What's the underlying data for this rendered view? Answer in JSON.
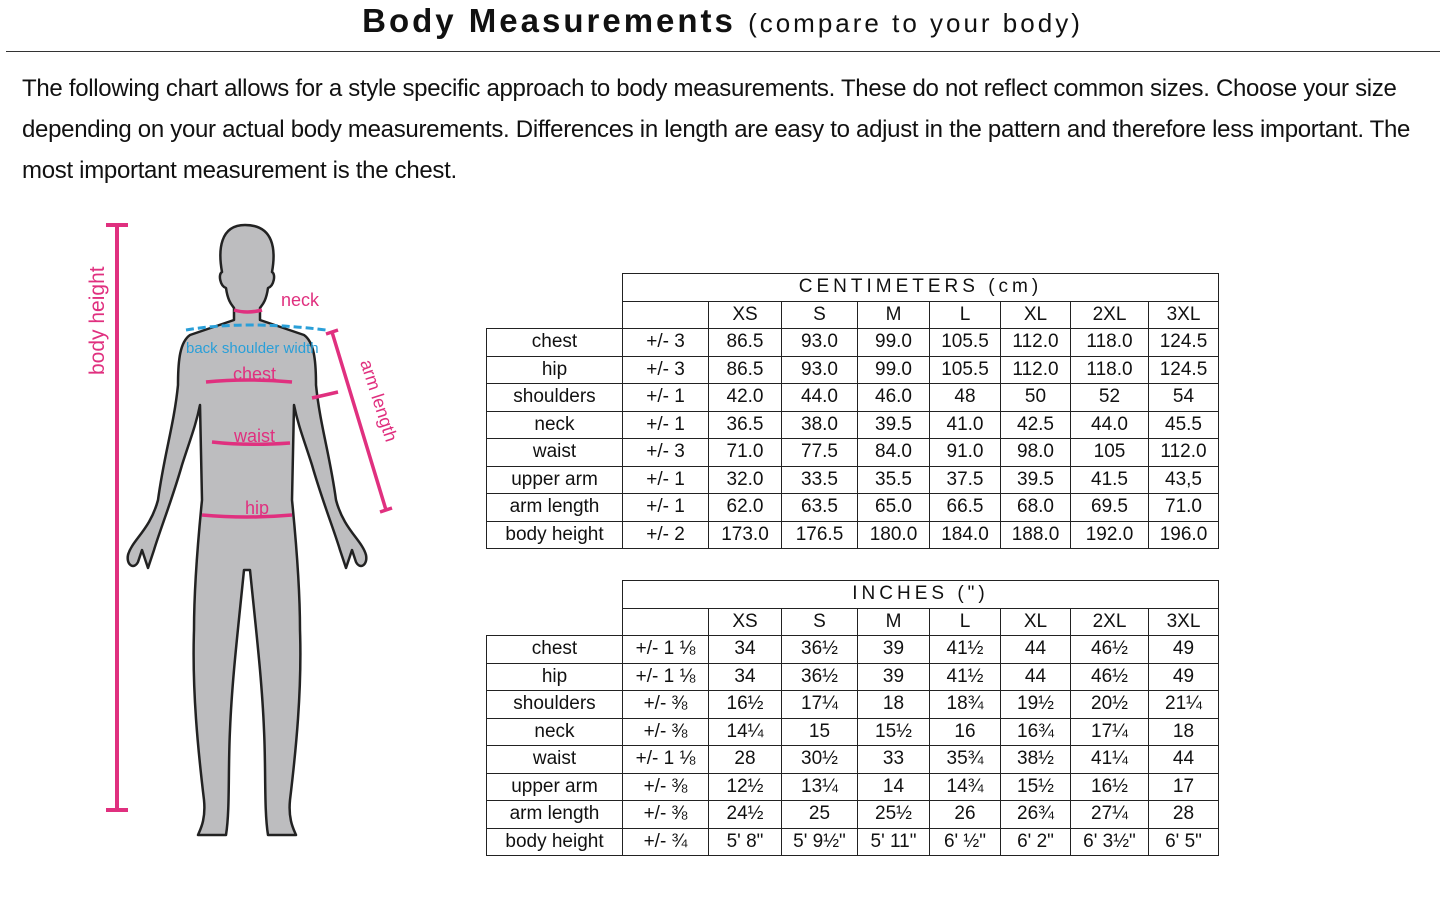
{
  "title": {
    "main": "Body Measurements",
    "sub": "(compare to your body)"
  },
  "intro": "The following chart allows for a style specific approach to body measurements. These do not reflect common sizes. Choose your size depending on your actual body measurements. Differences in length are easy to adjust in the pattern and therefore less important. The most important measurement is the chest.",
  "figure": {
    "labels": {
      "body_height": "body height",
      "neck": "neck",
      "back_shoulder_width": "back shoulder width",
      "chest": "chest",
      "waist": "waist",
      "hip": "hip",
      "arm_length": "arm length"
    },
    "colors": {
      "measure": "#e0307f",
      "shoulder": "#2a9fd8",
      "body": "#bdbdbf"
    }
  },
  "sizes": [
    "XS",
    "S",
    "M",
    "L",
    "XL",
    "2XL",
    "3XL"
  ],
  "centimeters": {
    "heading": "CENTIMETERS (cm)",
    "rows": [
      {
        "label": "chest",
        "tol": "+/- 3",
        "values": [
          "86.5",
          "93.0",
          "99.0",
          "105.5",
          "112.0",
          "118.0",
          "124.5"
        ]
      },
      {
        "label": "hip",
        "tol": "+/- 3",
        "values": [
          "86.5",
          "93.0",
          "99.0",
          "105.5",
          "112.0",
          "118.0",
          "124.5"
        ]
      },
      {
        "label": "shoulders",
        "tol": "+/- 1",
        "values": [
          "42.0",
          "44.0",
          "46.0",
          "48",
          "50",
          "52",
          "54"
        ]
      },
      {
        "label": "neck",
        "tol": "+/- 1",
        "values": [
          "36.5",
          "38.0",
          "39.5",
          "41.0",
          "42.5",
          "44.0",
          "45.5"
        ]
      },
      {
        "label": "waist",
        "tol": "+/- 3",
        "values": [
          "71.0",
          "77.5",
          "84.0",
          "91.0",
          "98.0",
          "105",
          "112.0"
        ]
      },
      {
        "label": "upper arm",
        "tol": "+/- 1",
        "values": [
          "32.0",
          "33.5",
          "35.5",
          "37.5",
          "39.5",
          "41.5",
          "43,5"
        ]
      },
      {
        "label": "arm length",
        "tol": "+/- 1",
        "values": [
          "62.0",
          "63.5",
          "65.0",
          "66.5",
          "68.0",
          "69.5",
          "71.0"
        ]
      },
      {
        "label": "body height",
        "tol": "+/- 2",
        "values": [
          "173.0",
          "176.5",
          "180.0",
          "184.0",
          "188.0",
          "192.0",
          "196.0"
        ]
      }
    ]
  },
  "inches": {
    "heading": "INCHES (\")",
    "rows": [
      {
        "label": "chest",
        "tol": "+/- 1 ⅛",
        "values": [
          "34",
          "36½",
          "39",
          "41½",
          "44",
          "46½",
          "49"
        ]
      },
      {
        "label": "hip",
        "tol": "+/- 1 ⅛",
        "values": [
          "34",
          "36½",
          "39",
          "41½",
          "44",
          "46½",
          "49"
        ]
      },
      {
        "label": "shoulders",
        "tol": "+/-  ⅜",
        "values": [
          "16½",
          "17¼",
          "18",
          "18¾",
          "19½",
          "20½",
          "21¼"
        ]
      },
      {
        "label": "neck",
        "tol": "+/-  ⅜",
        "values": [
          "14¼",
          "15",
          "15½",
          "16",
          "16¾",
          "17¼",
          "18"
        ]
      },
      {
        "label": "waist",
        "tol": "+/- 1 ⅛",
        "values": [
          "28",
          "30½",
          "33",
          "35¾",
          "38½",
          "41¼",
          "44"
        ]
      },
      {
        "label": "upper arm",
        "tol": "+/-  ⅜",
        "values": [
          "12½",
          "13¼",
          "14",
          "14¾",
          "15½",
          "16½",
          "17"
        ]
      },
      {
        "label": "arm length",
        "tol": "+/-  ⅜",
        "values": [
          "24½",
          "25",
          "25½",
          "26",
          "26¾",
          "27¼",
          "28"
        ]
      },
      {
        "label": "body height",
        "tol": "+/-  ¾",
        "values": [
          "5' 8\"",
          "5' 9½\"",
          "5' 11\"",
          "6' ½\"",
          "6' 2\"",
          "6' 3½\"",
          "6' 5\""
        ]
      }
    ]
  }
}
